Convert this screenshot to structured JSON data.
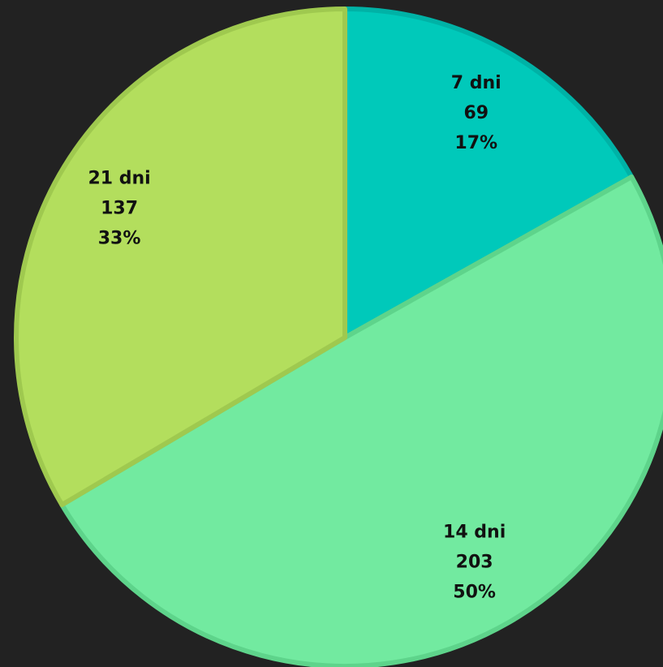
{
  "chart_data": {
    "type": "pie",
    "categories": [
      "7 dni",
      "14 dni",
      "21 dni"
    ],
    "values": [
      69,
      203,
      137
    ],
    "percent_labels": [
      "17%",
      "50%",
      "33%"
    ],
    "colors": [
      "#00c9ba",
      "#72eaa0",
      "#b3de5d"
    ],
    "edge_colors": [
      "#00b2a6",
      "#5ed48b",
      "#9fc94f"
    ]
  }
}
